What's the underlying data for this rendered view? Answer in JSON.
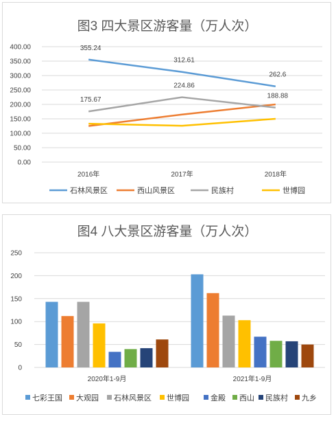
{
  "chart_data": [
    {
      "type": "line",
      "title": "图3 四大景区游客量（万人次）",
      "categories": [
        "2016年",
        "2017年",
        "2018年"
      ],
      "ylim": [
        0,
        400
      ],
      "yticks": [
        "0.00",
        "50.00",
        "100.00",
        "150.00",
        "200.00",
        "250.00",
        "300.00",
        "350.00",
        "400.00"
      ],
      "grid": true,
      "legend_position": "bottom",
      "series": [
        {
          "name": "石林风景区",
          "color": "#5b9bd5",
          "values": [
            355.24,
            312.61,
            262.6
          ],
          "labels": [
            "355.24",
            "312.61",
            "262.6"
          ]
        },
        {
          "name": "西山风景区",
          "color": "#ed7d31",
          "values": [
            125,
            165,
            200
          ],
          "labels": [
            "",
            "",
            ""
          ]
        },
        {
          "name": "民族村",
          "color": "#a5a5a5",
          "values": [
            175.67,
            224.86,
            188.88
          ],
          "labels": [
            "175.67",
            "224.86",
            "188.88"
          ]
        },
        {
          "name": "世博园",
          "color": "#ffc000",
          "values": [
            133,
            126,
            150
          ],
          "labels": [
            "",
            "",
            ""
          ]
        }
      ]
    },
    {
      "type": "bar",
      "title": "图4 八大景区游客量（万人次）",
      "categories": [
        "2020年1-9月",
        "2021年1-9月"
      ],
      "ylim": [
        0,
        250
      ],
      "yticks": [
        "0",
        "50",
        "100",
        "150",
        "200",
        "250"
      ],
      "grid": true,
      "legend_position": "bottom",
      "series": [
        {
          "name": "七彩王国",
          "color": "#5b9bd5",
          "values": [
            143,
            203
          ]
        },
        {
          "name": "大观园",
          "color": "#ed7d31",
          "values": [
            112,
            162
          ]
        },
        {
          "name": "石林风景区",
          "color": "#a5a5a5",
          "values": [
            143,
            113
          ]
        },
        {
          "name": "世博园",
          "color": "#ffc000",
          "values": [
            96,
            103
          ]
        },
        {
          "name": "金殿",
          "color": "#4472c4",
          "values": [
            34,
            67
          ]
        },
        {
          "name": "西山",
          "color": "#70ad47",
          "values": [
            40,
            58
          ]
        },
        {
          "name": "民族村",
          "color": "#264478",
          "values": [
            42,
            57
          ]
        },
        {
          "name": "九乡",
          "color": "#9e480e",
          "values": [
            61,
            50
          ]
        }
      ]
    }
  ]
}
